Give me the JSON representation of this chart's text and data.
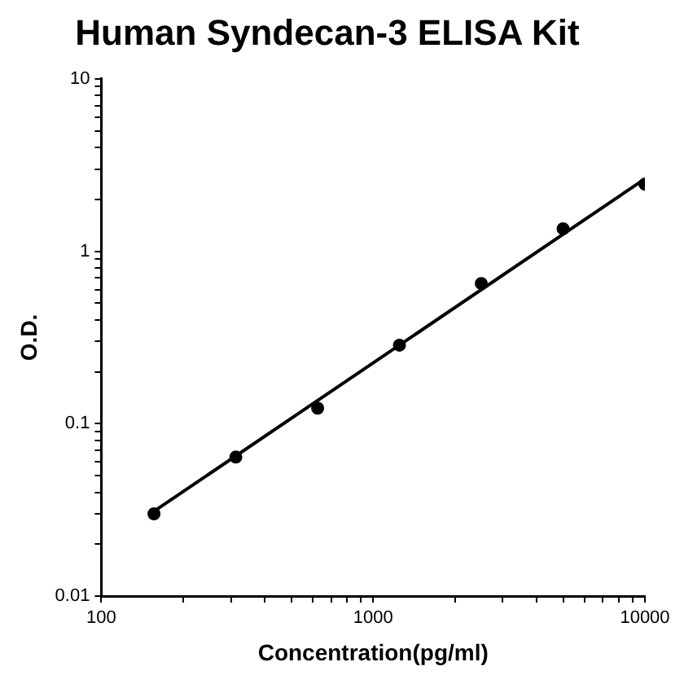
{
  "chart_data": {
    "type": "scatter",
    "title": "Human Syndecan-3 ELISA Kit",
    "xlabel": "Concentration(pg/ml)",
    "ylabel": "O.D.",
    "log": "xy",
    "grid": false,
    "legend": false,
    "marker": "circle",
    "xlim": [
      100,
      10000
    ],
    "ylim": [
      0.01,
      10
    ],
    "xticks": [
      100,
      {
        "value": 200,
        "label": null
      },
      {
        "value": 300,
        "label": null
      },
      {
        "value": 400,
        "label": null
      },
      {
        "value": 500,
        "label": null
      },
      {
        "value": 600,
        "label": null
      },
      {
        "value": 700,
        "label": null
      },
      {
        "value": 800,
        "label": null
      },
      {
        "value": 900,
        "label": null
      },
      1000,
      {
        "value": 2000,
        "label": null
      },
      {
        "value": 3000,
        "label": null
      },
      {
        "value": 4000,
        "label": null
      },
      {
        "value": 5000,
        "label": null
      },
      {
        "value": 6000,
        "label": null
      },
      {
        "value": 7000,
        "label": null
      },
      {
        "value": 8000,
        "label": null
      },
      {
        "value": 9000,
        "label": null
      },
      10000
    ],
    "yticks": [
      0.01,
      {
        "value": 0.02,
        "label": null
      },
      {
        "value": 0.03,
        "label": null
      },
      {
        "value": 0.04,
        "label": null
      },
      {
        "value": 0.05,
        "label": null
      },
      {
        "value": 0.06,
        "label": null
      },
      {
        "value": 0.07,
        "label": null
      },
      {
        "value": 0.08,
        "label": null
      },
      {
        "value": 0.09,
        "label": null
      },
      0.1,
      {
        "value": 0.2,
        "label": null
      },
      {
        "value": 0.3,
        "label": null
      },
      {
        "value": 0.4,
        "label": null
      },
      {
        "value": 0.5,
        "label": null
      },
      {
        "value": 0.6,
        "label": null
      },
      {
        "value": 0.7,
        "label": null
      },
      {
        "value": 0.8,
        "label": null
      },
      {
        "value": 0.9,
        "label": null
      },
      1,
      {
        "value": 2,
        "label": null
      },
      {
        "value": 3,
        "label": null
      },
      {
        "value": 4,
        "label": null
      },
      {
        "value": 5,
        "label": null
      },
      {
        "value": 6,
        "label": null
      },
      {
        "value": 7,
        "label": null
      },
      {
        "value": 8,
        "label": null
      },
      {
        "value": 9,
        "label": null
      },
      10
    ],
    "series": [
      {
        "type": "scatter",
        "color": "#000000",
        "x": [
          156.25,
          312.5,
          625,
          1250,
          2500,
          5000,
          10000
        ],
        "values": [
          0.03,
          0.064,
          0.123,
          0.285,
          0.65,
          1.35,
          2.45
        ]
      },
      {
        "type": "line",
        "color": "#000000",
        "marker": "none",
        "x": [
          156.25,
          10000
        ],
        "values": [
          0.031,
          2.63
        ]
      }
    ]
  }
}
